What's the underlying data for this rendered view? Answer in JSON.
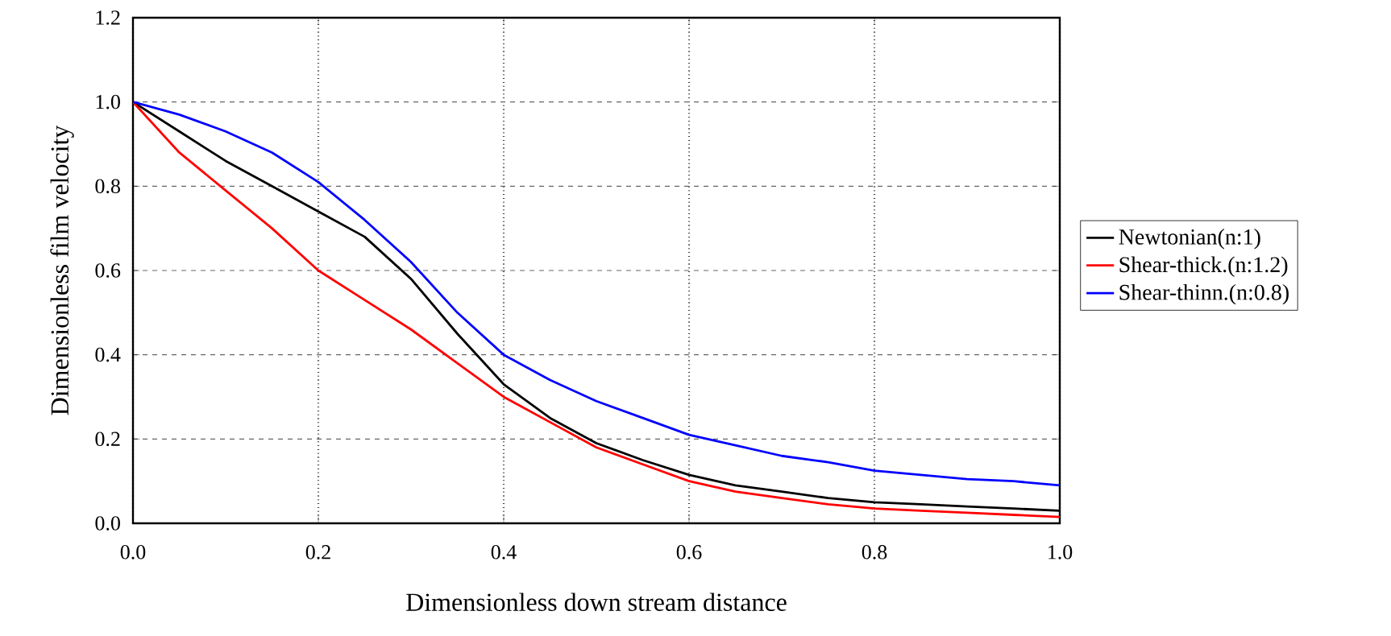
{
  "chart_data": {
    "type": "line",
    "xlabel": "Dimensionless down stream distance",
    "ylabel": "Dimensionless film velocity",
    "xlim": [
      0,
      1
    ],
    "ylim": [
      0,
      1.2
    ],
    "xticks": [
      {
        "value": 0,
        "label": "0.0"
      },
      {
        "value": 0.2,
        "label": "0.2"
      },
      {
        "value": 0.4,
        "label": "0.4"
      },
      {
        "value": 0.6,
        "label": "0.6"
      },
      {
        "value": 0.8,
        "label": "0.8"
      },
      {
        "value": 1,
        "label": "1.0"
      }
    ],
    "yticks": [
      {
        "value": 0,
        "label": "0.0"
      },
      {
        "value": 0.2,
        "label": "0.2"
      },
      {
        "value": 0.4,
        "label": "0.4"
      },
      {
        "value": 0.6,
        "label": "0.6"
      },
      {
        "value": 0.8,
        "label": "0.8"
      },
      {
        "value": 1,
        "label": "1.0"
      },
      {
        "value": 1.2,
        "label": "1.2"
      }
    ],
    "x": [
      0,
      0.05,
      0.1,
      0.15,
      0.2,
      0.25,
      0.3,
      0.35,
      0.4,
      0.45,
      0.5,
      0.55,
      0.6,
      0.65,
      0.7,
      0.75,
      0.8,
      0.85,
      0.9,
      0.95,
      1.0
    ],
    "series": [
      {
        "name": "Newtonian(n:1)",
        "color": "#000000",
        "values": [
          1.0,
          0.93,
          0.86,
          0.8,
          0.74,
          0.68,
          0.58,
          0.45,
          0.33,
          0.25,
          0.19,
          0.15,
          0.115,
          0.09,
          0.075,
          0.06,
          0.05,
          0.045,
          0.04,
          0.035,
          0.03
        ]
      },
      {
        "name": "Shear-thick.(n:1.2)",
        "color": "#ff0000",
        "values": [
          1.0,
          0.88,
          0.79,
          0.7,
          0.6,
          0.53,
          0.46,
          0.38,
          0.3,
          0.24,
          0.18,
          0.14,
          0.1,
          0.075,
          0.06,
          0.045,
          0.035,
          0.03,
          0.025,
          0.02,
          0.015
        ]
      },
      {
        "name": "Shear-thinn.(n:0.8)",
        "color": "#0000ff",
        "values": [
          1.0,
          0.97,
          0.93,
          0.88,
          0.81,
          0.72,
          0.62,
          0.5,
          0.4,
          0.34,
          0.29,
          0.25,
          0.21,
          0.185,
          0.16,
          0.145,
          0.125,
          0.115,
          0.105,
          0.1,
          0.09
        ]
      }
    ],
    "grid": true,
    "legend": "right",
    "marker": "none",
    "line_style": "solid"
  }
}
